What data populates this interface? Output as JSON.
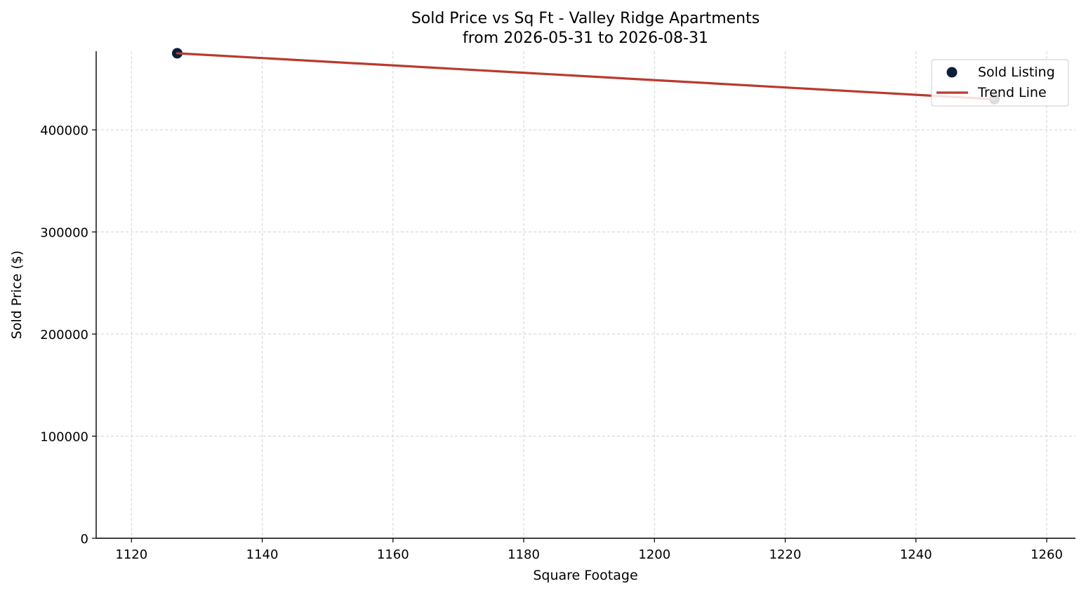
{
  "chart_data": {
    "type": "scatter",
    "title": "Sold Price vs Sq Ft - Valley Ridge Apartments",
    "subtitle": "from 2026-05-31 to 2026-08-31",
    "xlabel": "Square Footage",
    "ylabel": "Sold Price ($)",
    "xlim": [
      1114.6,
      1264.4
    ],
    "ylim": [
      0,
      477000
    ],
    "x_ticks": [
      1120,
      1140,
      1160,
      1180,
      1200,
      1220,
      1240,
      1260
    ],
    "y_ticks": [
      0,
      100000,
      200000,
      300000,
      400000
    ],
    "grid": true,
    "legend_position": "top-right",
    "series": [
      {
        "name": "Sold Listing",
        "kind": "scatter",
        "color": "#0b1f3a",
        "points": [
          {
            "x": 1127,
            "y": 475000
          },
          {
            "x": 1252,
            "y": 430000
          }
        ]
      },
      {
        "name": "Trend Line",
        "kind": "line",
        "color": "#b93a2e",
        "points": [
          {
            "x": 1127,
            "y": 475000
          },
          {
            "x": 1252,
            "y": 430000
          }
        ]
      }
    ]
  }
}
